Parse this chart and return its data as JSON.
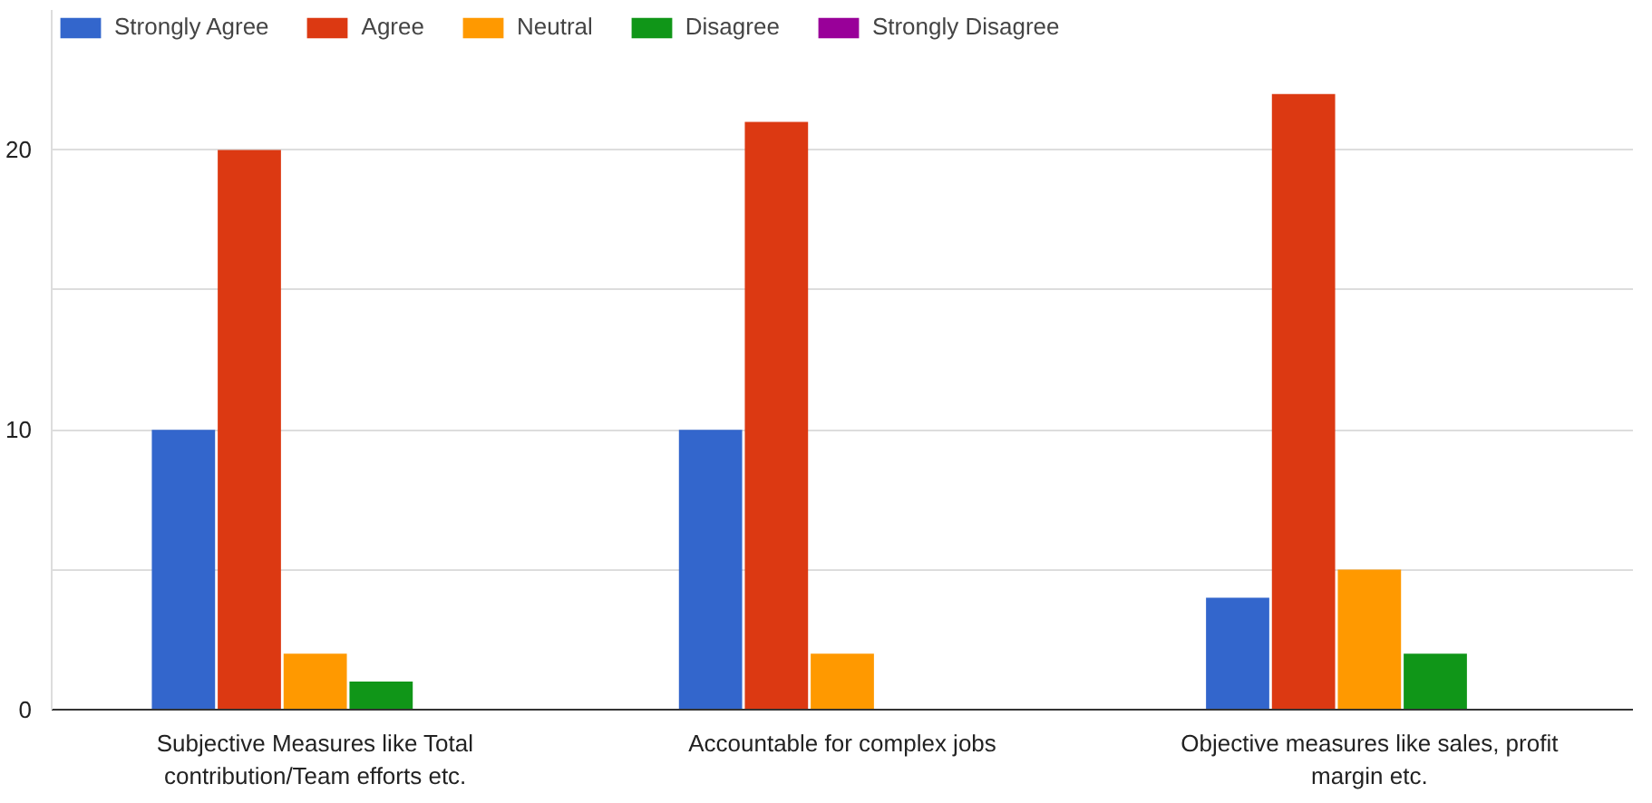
{
  "chart_data": {
    "type": "bar",
    "categories": [
      "Subjective Measures like Total\ncontribution/Team efforts etc.",
      "Accountable for complex jobs",
      "Objective measures like sales, profit\nmargin etc."
    ],
    "series": [
      {
        "name": "Strongly Agree",
        "color": "#3366cc",
        "values": [
          10,
          10,
          4
        ]
      },
      {
        "name": "Agree",
        "color": "#dc3912",
        "values": [
          20,
          21,
          22
        ]
      },
      {
        "name": "Neutral",
        "color": "#ff9900",
        "values": [
          2,
          2,
          5
        ]
      },
      {
        "name": "Disagree",
        "color": "#109618",
        "values": [
          1,
          0,
          2
        ]
      },
      {
        "name": "Strongly Disagree",
        "color": "#990099",
        "values": [
          0,
          0,
          0
        ]
      }
    ],
    "ylim": [
      0,
      25
    ],
    "yticks": [
      0,
      {
        "value": 5,
        "label": null
      },
      10,
      {
        "value": 15,
        "label": null
      },
      20
    ],
    "grid": "y",
    "legend": "top"
  }
}
